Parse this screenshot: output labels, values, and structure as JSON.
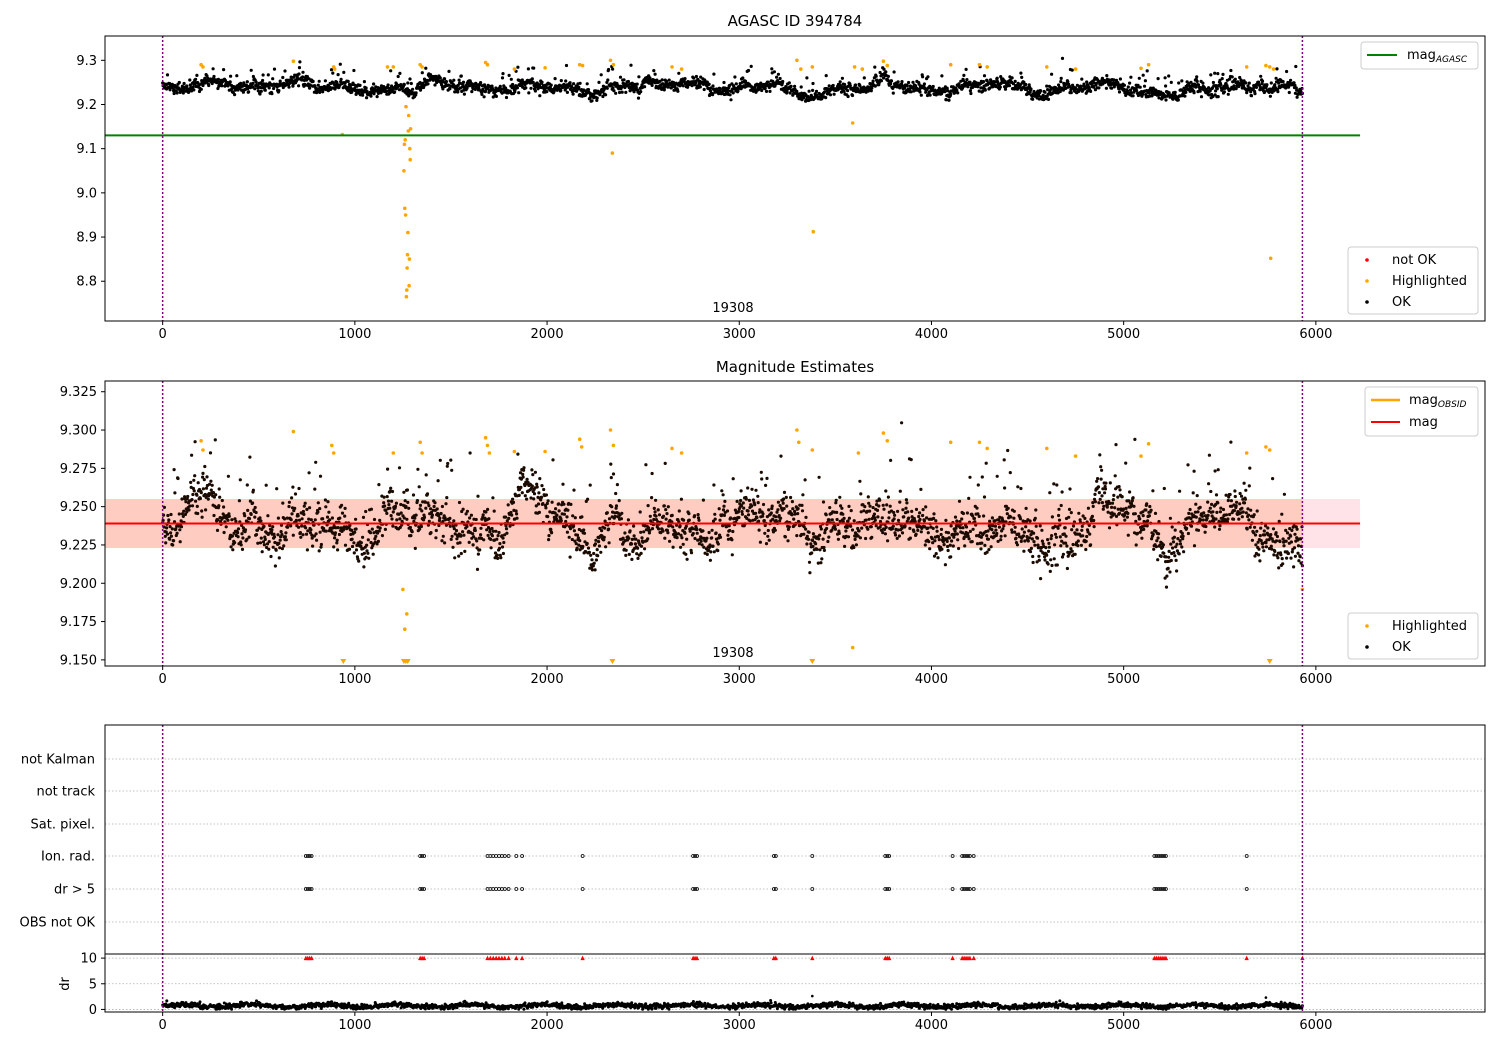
{
  "colors": {
    "ok": "#000000",
    "highlighted": "#ffa500",
    "not_ok": "#ff0000",
    "mag_agasc": "#008000",
    "mag_obsid": "#ffa500",
    "mag": "#ff0000",
    "band_inner": "#ffa07a",
    "band_outer": "#ffc0cb",
    "boundary": "#800080",
    "grid": "#b0b0b0"
  },
  "chart_data": [
    {
      "type": "scatter",
      "title": "AGASC ID 394784",
      "annotation": "19308",
      "xlim": [
        -300,
        6880
      ],
      "ylim": [
        8.71,
        9.355
      ],
      "xticks": [
        "0",
        "1000",
        "2000",
        "3000",
        "4000",
        "5000",
        "6000"
      ],
      "yticks": [
        "8.8",
        "8.9",
        "9.0",
        "9.1",
        "9.2",
        "9.3"
      ],
      "obsid_boundaries": [
        0,
        5930
      ],
      "ok_series": {
        "name": "OK",
        "x_range": [
          0,
          5930
        ],
        "mean": 9.238,
        "scatter": 0.012
      },
      "highlighted_points": [
        {
          "x": 200,
          "y": 9.29
        },
        {
          "x": 210,
          "y": 9.285
        },
        {
          "x": 680,
          "y": 9.298
        },
        {
          "x": 890,
          "y": 9.285
        },
        {
          "x": 895,
          "y": 9.28
        },
        {
          "x": 935,
          "y": 9.132
        },
        {
          "x": 1170,
          "y": 9.285
        },
        {
          "x": 1200,
          "y": 9.285
        },
        {
          "x": 1255,
          "y": 9.05
        },
        {
          "x": 1258,
          "y": 9.11
        },
        {
          "x": 1260,
          "y": 8.965
        },
        {
          "x": 1262,
          "y": 9.12
        },
        {
          "x": 1264,
          "y": 8.95
        },
        {
          "x": 1266,
          "y": 9.195
        },
        {
          "x": 1268,
          "y": 8.765
        },
        {
          "x": 1270,
          "y": 8.78
        },
        {
          "x": 1272,
          "y": 8.83
        },
        {
          "x": 1274,
          "y": 8.86
        },
        {
          "x": 1276,
          "y": 8.91
        },
        {
          "x": 1278,
          "y": 9.14
        },
        {
          "x": 1280,
          "y": 9.175
        },
        {
          "x": 1282,
          "y": 8.79
        },
        {
          "x": 1284,
          "y": 8.85
        },
        {
          "x": 1286,
          "y": 9.1
        },
        {
          "x": 1288,
          "y": 9.075
        },
        {
          "x": 1290,
          "y": 9.145
        },
        {
          "x": 1340,
          "y": 9.29
        },
        {
          "x": 1350,
          "y": 9.285
        },
        {
          "x": 1680,
          "y": 9.295
        },
        {
          "x": 1690,
          "y": 9.29
        },
        {
          "x": 1830,
          "y": 9.28
        },
        {
          "x": 1990,
          "y": 9.283
        },
        {
          "x": 2170,
          "y": 9.29
        },
        {
          "x": 2185,
          "y": 9.288
        },
        {
          "x": 2330,
          "y": 9.3
        },
        {
          "x": 2340,
          "y": 9.09
        },
        {
          "x": 2345,
          "y": 9.29
        },
        {
          "x": 2650,
          "y": 9.285
        },
        {
          "x": 2700,
          "y": 9.28
        },
        {
          "x": 3300,
          "y": 9.3
        },
        {
          "x": 3320,
          "y": 9.28
        },
        {
          "x": 3380,
          "y": 9.285
        },
        {
          "x": 3385,
          "y": 8.912
        },
        {
          "x": 3590,
          "y": 9.158
        },
        {
          "x": 3600,
          "y": 9.285
        },
        {
          "x": 3640,
          "y": 9.28
        },
        {
          "x": 3750,
          "y": 9.298
        },
        {
          "x": 3770,
          "y": 9.288
        },
        {
          "x": 4100,
          "y": 9.29
        },
        {
          "x": 4250,
          "y": 9.29
        },
        {
          "x": 4290,
          "y": 9.285
        },
        {
          "x": 4600,
          "y": 9.285
        },
        {
          "x": 4750,
          "y": 9.28
        },
        {
          "x": 5090,
          "y": 9.282
        },
        {
          "x": 5130,
          "y": 9.29
        },
        {
          "x": 5640,
          "y": 9.285
        },
        {
          "x": 5740,
          "y": 9.288
        },
        {
          "x": 5760,
          "y": 9.285
        },
        {
          "x": 5765,
          "y": 8.852
        },
        {
          "x": 5780,
          "y": 9.28
        }
      ],
      "lines": [
        {
          "name": "mag_AGASC",
          "y": 9.13,
          "x_range": [
            -300,
            6230
          ]
        }
      ],
      "legend": {
        "upper": {
          "position": "top-right",
          "entries": [
            {
              "label": "mag",
              "sub": "AGASC"
            }
          ]
        },
        "lower": {
          "position": "bottom-right",
          "entries": [
            {
              "label": "not OK"
            },
            {
              "label": "Highlighted"
            },
            {
              "label": "OK"
            }
          ]
        }
      }
    },
    {
      "type": "scatter",
      "title": "Magnitude Estimates",
      "annotation": "19308",
      "xlim": [
        -300,
        6880
      ],
      "ylim": [
        9.146,
        9.332
      ],
      "xticks": [
        "0",
        "1000",
        "2000",
        "3000",
        "4000",
        "5000",
        "6000"
      ],
      "yticks": [
        "9.150",
        "9.175",
        "9.200",
        "9.225",
        "9.250",
        "9.275",
        "9.300",
        "9.325"
      ],
      "obsid_boundaries": [
        0,
        5930
      ],
      "ok_series": {
        "name": "OK",
        "x_range": [
          0,
          5930
        ],
        "mean": 9.238,
        "scatter": 0.012
      },
      "band": {
        "y": [
          9.223,
          9.255
        ],
        "x_range": [
          -300,
          6230
        ]
      },
      "lines": [
        {
          "name": "mag_OBSID",
          "y": 9.239,
          "x_range": [
            -300,
            5930
          ]
        },
        {
          "name": "mag",
          "y": 9.239,
          "x_range": [
            -300,
            6230
          ]
        }
      ],
      "highlighted_points": [
        {
          "x": 200,
          "y": 9.293
        },
        {
          "x": 210,
          "y": 9.287
        },
        {
          "x": 680,
          "y": 9.299
        },
        {
          "x": 880,
          "y": 9.29
        },
        {
          "x": 890,
          "y": 9.285
        },
        {
          "x": 1200,
          "y": 9.285
        },
        {
          "x": 1250,
          "y": 9.196
        },
        {
          "x": 1260,
          "y": 9.17
        },
        {
          "x": 1270,
          "y": 9.18
        },
        {
          "x": 1340,
          "y": 9.292
        },
        {
          "x": 1350,
          "y": 9.285
        },
        {
          "x": 1680,
          "y": 9.295
        },
        {
          "x": 1690,
          "y": 9.29
        },
        {
          "x": 1700,
          "y": 9.285
        },
        {
          "x": 1830,
          "y": 9.286
        },
        {
          "x": 1990,
          "y": 9.286
        },
        {
          "x": 2170,
          "y": 9.294
        },
        {
          "x": 2180,
          "y": 9.289
        },
        {
          "x": 2330,
          "y": 9.3
        },
        {
          "x": 2345,
          "y": 9.29
        },
        {
          "x": 2650,
          "y": 9.288
        },
        {
          "x": 2700,
          "y": 9.285
        },
        {
          "x": 3300,
          "y": 9.3
        },
        {
          "x": 3310,
          "y": 9.292
        },
        {
          "x": 3380,
          "y": 9.287
        },
        {
          "x": 3590,
          "y": 9.158
        },
        {
          "x": 3620,
          "y": 9.285
        },
        {
          "x": 3750,
          "y": 9.298
        },
        {
          "x": 3770,
          "y": 9.293
        },
        {
          "x": 4100,
          "y": 9.292
        },
        {
          "x": 4250,
          "y": 9.292
        },
        {
          "x": 4290,
          "y": 9.288
        },
        {
          "x": 4600,
          "y": 9.288
        },
        {
          "x": 4750,
          "y": 9.283
        },
        {
          "x": 5090,
          "y": 9.283
        },
        {
          "x": 5130,
          "y": 9.291
        },
        {
          "x": 5640,
          "y": 9.285
        },
        {
          "x": 5740,
          "y": 9.289
        },
        {
          "x": 5760,
          "y": 9.287
        },
        {
          "x": 5930,
          "y": 9.196
        }
      ],
      "off_scale_markers": [
        940,
        1255,
        1265,
        1275,
        2340,
        3380,
        5760
      ],
      "legend": {
        "upper": {
          "position": "top-right",
          "entries": [
            {
              "label": "mag",
              "sub": "OBSID"
            },
            {
              "label": "mag"
            }
          ]
        },
        "lower": {
          "position": "bottom-right",
          "entries": [
            {
              "label": "Highlighted"
            },
            {
              "label": "OK"
            }
          ]
        }
      }
    },
    {
      "type": "scatter",
      "ylabel": "dr",
      "xlim": [
        -300,
        6880
      ],
      "xticks": [
        "0",
        "1000",
        "2000",
        "3000",
        "4000",
        "5000",
        "6000"
      ],
      "flag_rows": [
        "not Kalman",
        "not track",
        "Sat. pixel.",
        "Ion. rad.",
        "dr > 5",
        "OBS not OK"
      ],
      "flag_events": [
        {
          "flags": [
            "Ion. rad.",
            "dr > 5"
          ],
          "x": [
            745,
            755,
            765,
            775,
            1340,
            1350,
            1360,
            1690,
            1705,
            1720,
            1735,
            1750,
            1765,
            1780,
            1800,
            1840,
            1870,
            2185,
            2760,
            2770,
            2780,
            3180,
            3190,
            3380,
            3760,
            3770,
            3780,
            4110,
            4160,
            4170,
            4180,
            4190,
            4200,
            4220,
            5160,
            5170,
            5180,
            5190,
            5200,
            5210,
            5220,
            5640
          ]
        }
      ],
      "dr_ylim": [
        -0.5,
        10.8
      ],
      "dr_yticks": [
        "0",
        "5",
        "10"
      ],
      "dr_typical": 0.7,
      "dr_spikes": [
        {
          "x": 3380,
          "y": 2.6
        },
        {
          "x": 5740,
          "y": 2.3
        },
        {
          "x": 5760,
          "y": 1.4
        }
      ],
      "clipped_x": [
        745,
        755,
        765,
        775,
        1340,
        1350,
        1360,
        1690,
        1705,
        1720,
        1735,
        1750,
        1765,
        1780,
        1800,
        1840,
        1870,
        2185,
        2760,
        2770,
        2780,
        3180,
        3190,
        3380,
        3760,
        3770,
        3780,
        4110,
        4160,
        4170,
        4180,
        4190,
        4200,
        4220,
        5160,
        5170,
        5180,
        5190,
        5200,
        5210,
        5220,
        5640,
        5930
      ]
    }
  ]
}
